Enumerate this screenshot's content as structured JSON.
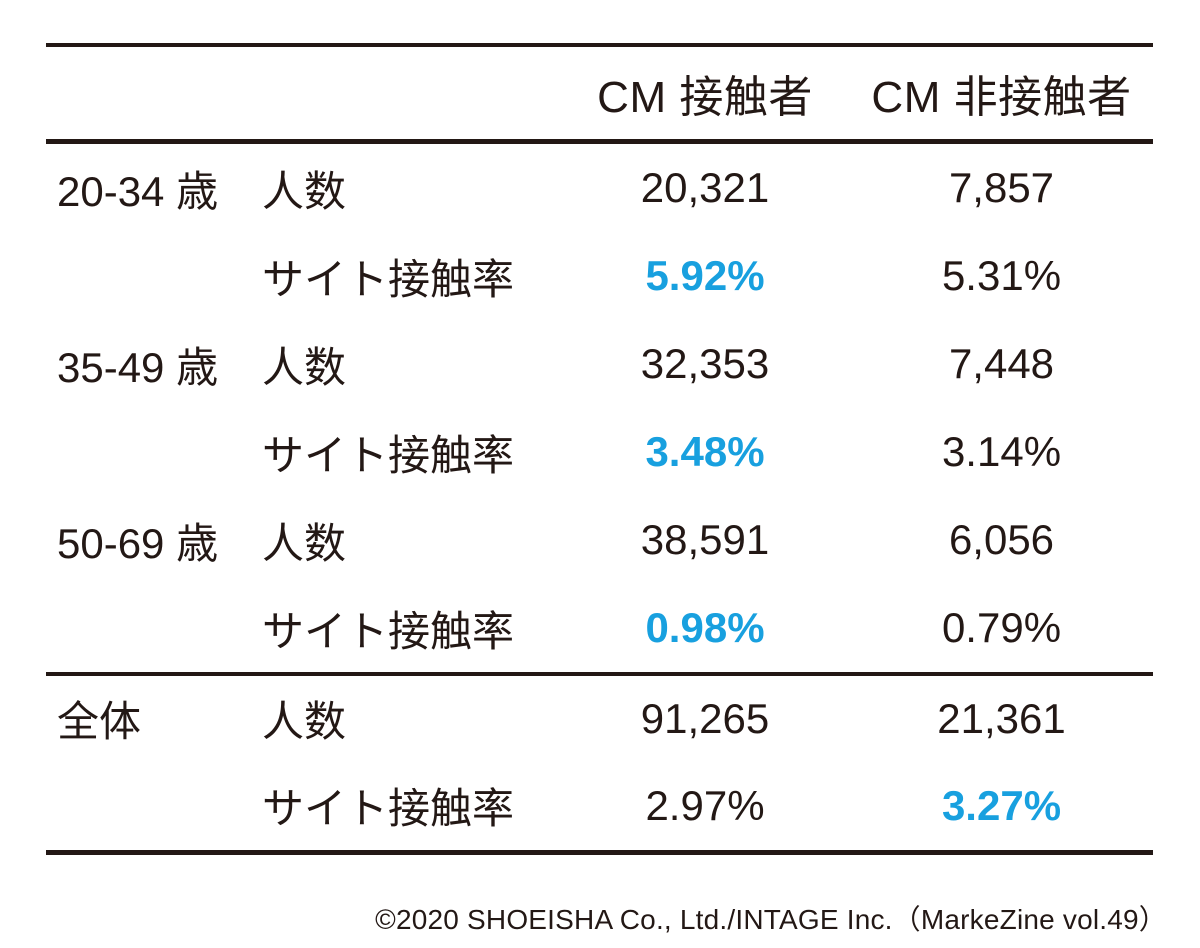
{
  "chart_data": {
    "type": "table",
    "columns": [
      "",
      "",
      "CM 接触者",
      "CM 非接触者"
    ],
    "rows": [
      [
        "20-34 歳",
        "人数",
        "20,321",
        "7,857"
      ],
      [
        "",
        "サイト接触率",
        "5.92%",
        "5.31%"
      ],
      [
        "35-49 歳",
        "人数",
        "32,353",
        "7,448"
      ],
      [
        "",
        "サイト接触率",
        "3.48%",
        "3.14%"
      ],
      [
        "50-69 歳",
        "人数",
        "38,591",
        "6,056"
      ],
      [
        "",
        "サイト接触率",
        "0.98%",
        "0.79%"
      ],
      [
        "全体",
        "人数",
        "91,265",
        "21,361"
      ],
      [
        "",
        "サイト接触率",
        "2.97%",
        "3.27%"
      ]
    ],
    "highlighted_cells": [
      {
        "row": 1,
        "col": 2,
        "color": "#18A0DF",
        "bold": true
      },
      {
        "row": 3,
        "col": 2,
        "color": "#18A0DF",
        "bold": true
      },
      {
        "row": 5,
        "col": 2,
        "color": "#18A0DF",
        "bold": true
      },
      {
        "row": 7,
        "col": 3,
        "color": "#18A0DF",
        "bold": true
      }
    ],
    "layout": {
      "rule_color": "#231815",
      "group_separator_above_row": 6,
      "grid": "horizontal rules only (top, below header, above totals, bottom)"
    }
  },
  "footer": {
    "credit": "©2020 SHOEISHA Co., Ltd./INTAGE Inc.（MarkeZine vol.49）"
  },
  "colors": {
    "accent_blue": "#18A0DF",
    "ink": "#231815"
  }
}
